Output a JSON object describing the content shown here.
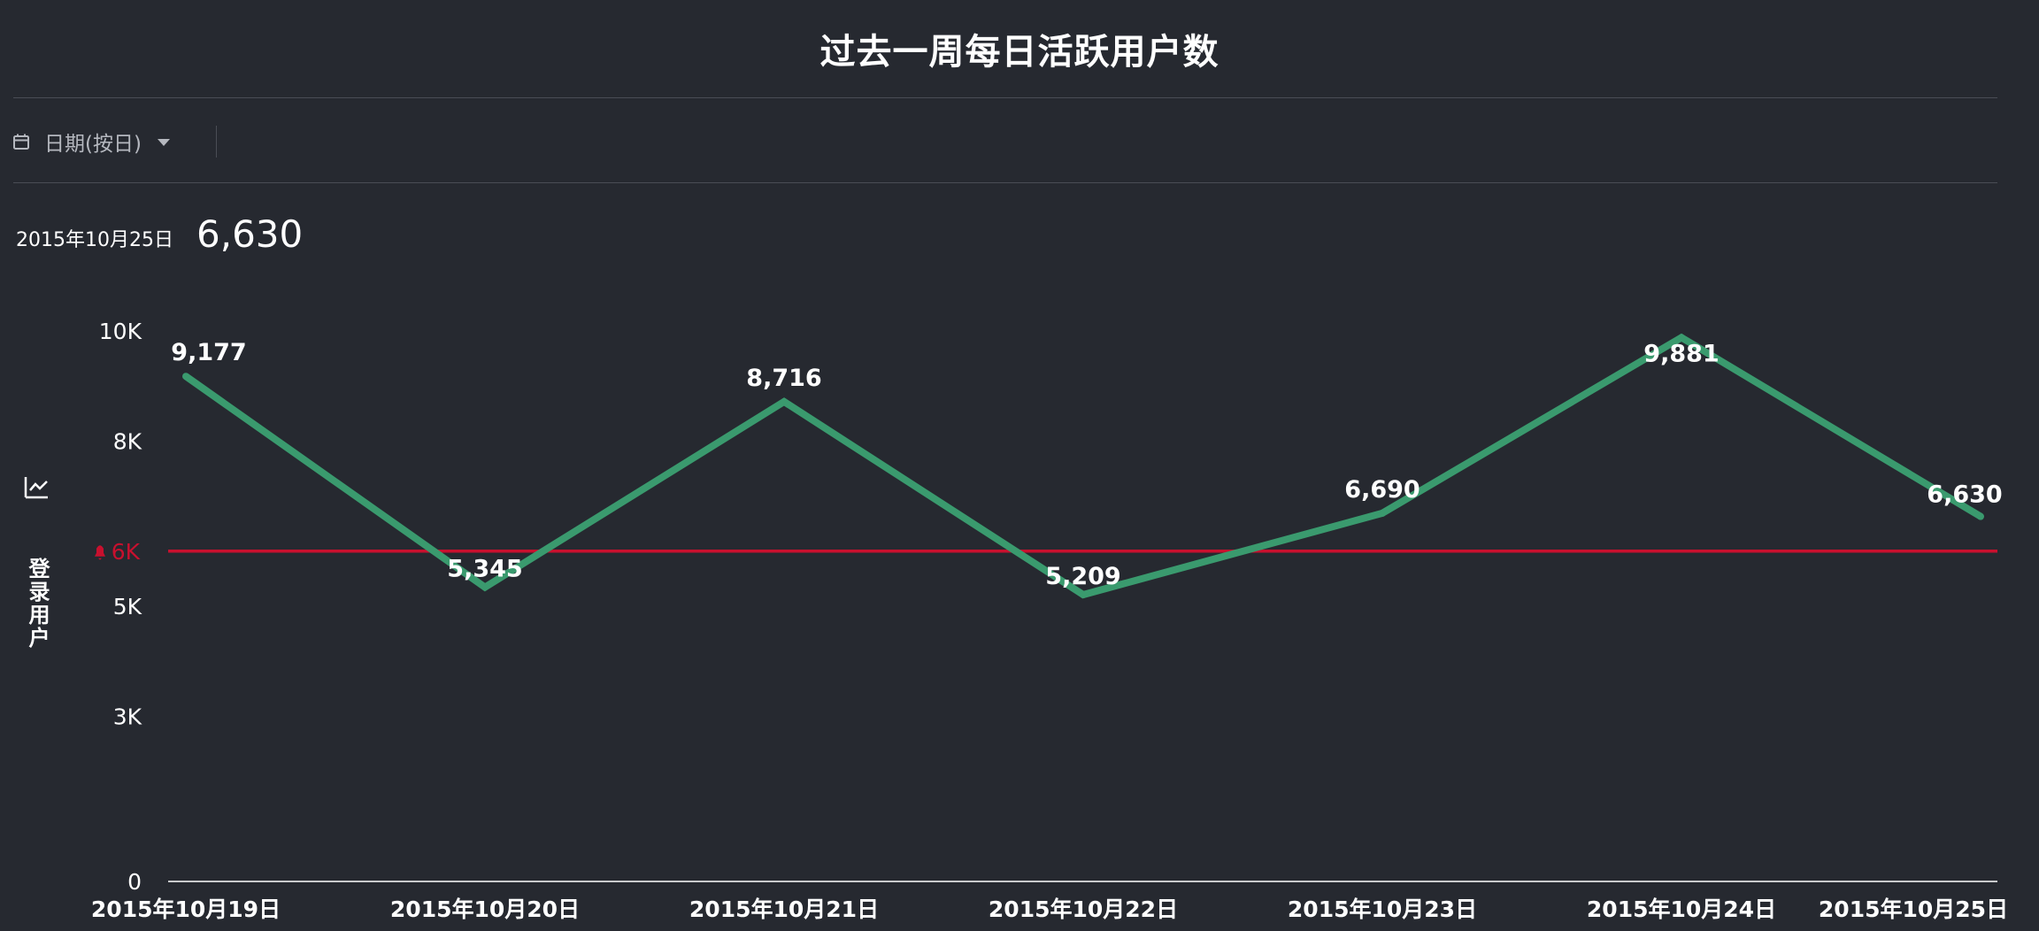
{
  "header": {
    "title": "过去一周每日活跃用户数"
  },
  "filter": {
    "label": "日期(按日)",
    "icon": "calendar-icon"
  },
  "summary": {
    "date": "2015年10月25日",
    "value": "6,630"
  },
  "colors": {
    "background": "#262930",
    "line": "#3a9a6e",
    "threshold": "#c8102e",
    "text": "#ffffff",
    "muted": "#b5b8bf"
  },
  "chart_data": {
    "type": "line",
    "title": "过去一周每日活跃用户数",
    "ylabel": "登录用户",
    "xlabel": "",
    "categories": [
      "2015年10月19日",
      "2015年10月20日",
      "2015年10月21日",
      "2015年10月22日",
      "2015年10月23日",
      "2015年10月24日",
      "2015年10月25日"
    ],
    "series": [
      {
        "values": [
          9177,
          5345,
          8716,
          5209,
          6690,
          9881,
          6630
        ],
        "labels": [
          "9,177",
          "5,345",
          "8,716",
          "5,209",
          "6,690",
          "9,881",
          "6,630"
        ]
      }
    ],
    "ylim": [
      0,
      10000
    ],
    "yticks": [
      {
        "value": 0,
        "label": "0"
      },
      {
        "value": 3000,
        "label": "3K"
      },
      {
        "value": 5000,
        "label": "5K"
      },
      {
        "value": 8000,
        "label": "8K"
      },
      {
        "value": 10000,
        "label": "10K"
      }
    ],
    "threshold": {
      "value": 6000,
      "label": "6K"
    },
    "grid": false
  }
}
